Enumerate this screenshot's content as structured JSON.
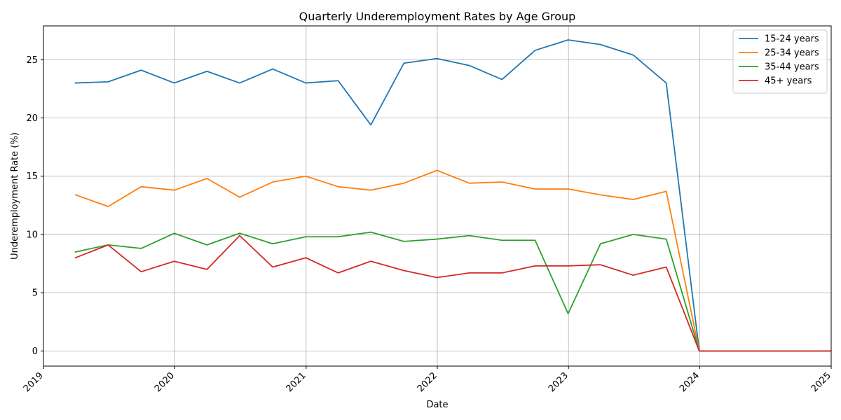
{
  "chart_data": {
    "type": "line",
    "title": "Quarterly Underemployment Rates by Age Group",
    "xlabel": "Date",
    "ylabel": "Underemployment Rate (%)",
    "x_ticks": [
      "2019",
      "2020",
      "2021",
      "2022",
      "2023",
      "2024",
      "2025"
    ],
    "y_ticks": [
      0,
      5,
      10,
      15,
      20,
      25
    ],
    "xlim": [
      "2019-01-01",
      "2025-01-01"
    ],
    "ylim": [
      -1.3,
      27.9
    ],
    "grid": true,
    "legend_position": "top-right",
    "x": [
      "2019-03-31",
      "2019-06-30",
      "2019-09-30",
      "2019-12-31",
      "2020-03-31",
      "2020-06-30",
      "2020-09-30",
      "2020-12-31",
      "2021-03-31",
      "2021-06-30",
      "2021-09-30",
      "2021-12-31",
      "2022-03-31",
      "2022-06-30",
      "2022-09-30",
      "2022-12-31",
      "2023-03-31",
      "2023-06-30",
      "2023-09-30",
      "2023-12-31",
      "2024-03-31",
      "2024-06-30",
      "2024-09-30",
      "2024-12-31"
    ],
    "series": [
      {
        "name": "15-24 years",
        "color": "#1f77b4",
        "values": [
          23.0,
          23.1,
          24.1,
          23.0,
          24.0,
          23.0,
          24.2,
          23.0,
          23.2,
          19.4,
          24.7,
          25.1,
          24.5,
          23.3,
          25.8,
          26.7,
          26.3,
          25.4,
          23.0,
          0,
          0,
          0,
          0,
          0
        ]
      },
      {
        "name": "25-34 years",
        "color": "#ff7f0e",
        "values": [
          13.4,
          12.4,
          14.1,
          13.8,
          14.8,
          13.2,
          14.5,
          15.0,
          14.1,
          13.8,
          14.4,
          15.5,
          14.4,
          14.5,
          13.9,
          13.9,
          13.4,
          13.0,
          13.7,
          0,
          0,
          0,
          0,
          0
        ]
      },
      {
        "name": "35-44 years",
        "color": "#2ca02c",
        "values": [
          8.5,
          9.1,
          8.8,
          10.1,
          9.1,
          10.1,
          9.2,
          9.8,
          9.8,
          10.2,
          9.4,
          9.6,
          9.9,
          9.5,
          9.5,
          3.2,
          9.2,
          10.0,
          9.6,
          0,
          0,
          0,
          0,
          0
        ]
      },
      {
        "name": "45+ years",
        "color": "#d62728",
        "values": [
          8.0,
          9.1,
          6.8,
          7.7,
          7.0,
          9.9,
          7.2,
          8.0,
          6.7,
          7.7,
          6.9,
          6.3,
          6.7,
          6.7,
          7.3,
          7.3,
          7.4,
          6.5,
          7.2,
          0,
          0,
          0,
          0,
          0
        ]
      }
    ]
  }
}
